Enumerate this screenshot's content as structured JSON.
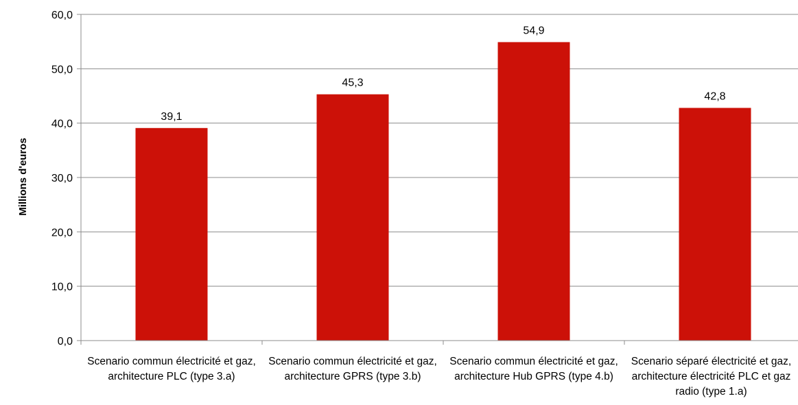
{
  "chart_data": {
    "type": "bar",
    "title": "",
    "xlabel": "",
    "ylabel": "Millions d'euros",
    "ylim": [
      0,
      60
    ],
    "ytick_step": 10,
    "ytick_labels": [
      "0,0",
      "10,0",
      "20,0",
      "30,0",
      "40,0",
      "50,0",
      "60,0"
    ],
    "grid": true,
    "legend": "none",
    "bar_color": "#cc1108",
    "categories": [
      "Scenario commun électricité et gaz, architecture PLC (type 3.a)",
      "Scenario commun électricité et gaz, architecture GPRS (type 3.b)",
      "Scenario commun électricité et gaz, architecture Hub GPRS (type 4.b)",
      "Scenario séparé électricité et gaz, architecture électricité PLC et gaz radio (type 1.a)"
    ],
    "values": [
      39.1,
      45.3,
      54.9,
      42.8
    ],
    "value_labels": [
      "39,1",
      "45,3",
      "54,9",
      "42,8"
    ]
  }
}
